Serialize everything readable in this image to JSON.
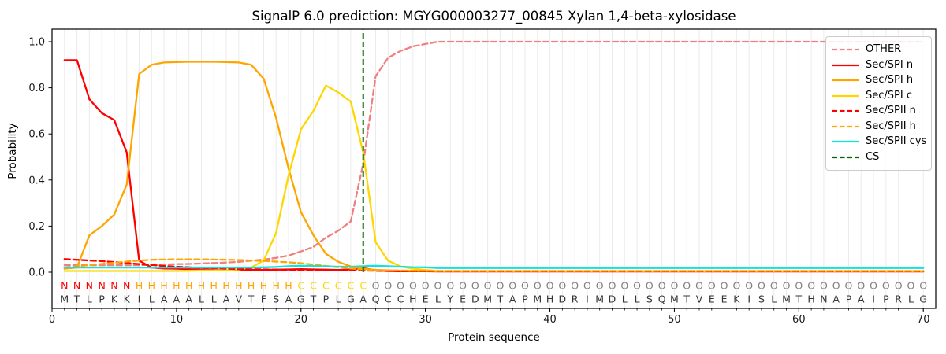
{
  "chart_data": {
    "type": "line",
    "title": "SignalP 6.0 prediction: MGYG000003277_00845 Xylan 1,4-beta-xylosidase",
    "xlabel": "Protein sequence",
    "ylabel": "Probability",
    "xlim": [
      0,
      71
    ],
    "ylim": [
      -0.157,
      1.0546
    ],
    "x_ticks": [
      0,
      10,
      20,
      30,
      40,
      50,
      60,
      70
    ],
    "y_ticks": [
      0.0,
      0.2,
      0.4,
      0.6,
      0.8,
      1.0
    ],
    "grid": "vertical-per-residue",
    "legend_position": "upper-right",
    "legend": [
      "OTHER",
      "Sec/SPI n",
      "Sec/SPI h",
      "Sec/SPI c",
      "Sec/SPII n",
      "Sec/SPII h",
      "Sec/SPII cys",
      "CS"
    ],
    "x": [
      1,
      2,
      3,
      4,
      5,
      6,
      7,
      8,
      9,
      10,
      11,
      12,
      13,
      14,
      15,
      16,
      17,
      18,
      19,
      20,
      21,
      22,
      23,
      24,
      25,
      26,
      27,
      28,
      29,
      30,
      31,
      32,
      33,
      34,
      35,
      36,
      37,
      38,
      39,
      40,
      41,
      42,
      43,
      44,
      45,
      46,
      47,
      48,
      49,
      50,
      51,
      52,
      53,
      54,
      55,
      56,
      57,
      58,
      59,
      60,
      61,
      62,
      63,
      64,
      65,
      66,
      67,
      68,
      69,
      70
    ],
    "series": [
      {
        "name": "OTHER",
        "color": "#f08080",
        "dash": "dashed",
        "values": [
          0.03,
          0.03,
          0.03,
          0.03,
          0.03,
          0.03,
          0.03,
          0.032,
          0.033,
          0.035,
          0.036,
          0.038,
          0.04,
          0.042,
          0.045,
          0.05,
          0.055,
          0.062,
          0.072,
          0.09,
          0.11,
          0.15,
          0.18,
          0.22,
          0.47,
          0.85,
          0.93,
          0.96,
          0.98,
          0.99,
          1.0,
          1.0,
          1.0,
          1.0,
          1.0,
          1.0,
          1.0,
          1.0,
          1.0,
          1.0,
          1.0,
          1.0,
          1.0,
          1.0,
          1.0,
          1.0,
          1.0,
          1.0,
          1.0,
          1.0,
          1.0,
          1.0,
          1.0,
          1.0,
          1.0,
          1.0,
          1.0,
          1.0,
          1.0,
          1.0,
          1.0,
          1.0,
          1.0,
          1.0,
          1.0,
          1.0,
          1.0,
          1.0,
          1.0,
          1.0
        ]
      },
      {
        "name": "Sec/SPI n",
        "color": "#ff0000",
        "dash": "solid",
        "values": [
          0.92,
          0.92,
          0.75,
          0.69,
          0.66,
          0.52,
          0.05,
          0.02,
          0.016,
          0.015,
          0.013,
          0.012,
          0.011,
          0.01,
          0.01,
          0.01,
          0.01,
          0.011,
          0.012,
          0.013,
          0.012,
          0.011,
          0.01,
          0.012,
          0.018,
          0.008,
          0.005,
          0.004,
          0.004,
          0.004,
          0.003,
          0.003,
          0.003,
          0.003,
          0.003,
          0.003,
          0.003,
          0.003,
          0.003,
          0.003,
          0.003,
          0.003,
          0.003,
          0.003,
          0.003,
          0.003,
          0.003,
          0.003,
          0.003,
          0.003,
          0.003,
          0.003,
          0.003,
          0.003,
          0.003,
          0.003,
          0.003,
          0.003,
          0.003,
          0.003,
          0.003,
          0.003,
          0.003,
          0.003,
          0.003,
          0.003,
          0.003,
          0.003,
          0.003,
          0.003
        ]
      },
      {
        "name": "Sec/SPI h",
        "color": "#ffa500",
        "dash": "solid",
        "values": [
          0.015,
          0.02,
          0.16,
          0.2,
          0.25,
          0.38,
          0.86,
          0.9,
          0.91,
          0.912,
          0.913,
          0.913,
          0.913,
          0.912,
          0.91,
          0.9,
          0.84,
          0.67,
          0.45,
          0.26,
          0.16,
          0.08,
          0.045,
          0.025,
          0.015,
          0.01,
          0.008,
          0.006,
          0.005,
          0.005,
          0.004,
          0.004,
          0.004,
          0.004,
          0.004,
          0.004,
          0.004,
          0.004,
          0.004,
          0.004,
          0.004,
          0.004,
          0.004,
          0.004,
          0.004,
          0.004,
          0.004,
          0.004,
          0.004,
          0.004,
          0.004,
          0.004,
          0.004,
          0.004,
          0.004,
          0.004,
          0.004,
          0.004,
          0.004,
          0.004,
          0.004,
          0.004,
          0.004,
          0.004,
          0.004,
          0.004,
          0.004,
          0.004,
          0.004,
          0.004
        ]
      },
      {
        "name": "Sec/SPI c",
        "color": "#ffd700",
        "dash": "solid",
        "values": [
          0.005,
          0.005,
          0.005,
          0.005,
          0.005,
          0.005,
          0.005,
          0.005,
          0.005,
          0.005,
          0.006,
          0.007,
          0.008,
          0.01,
          0.012,
          0.02,
          0.05,
          0.17,
          0.42,
          0.62,
          0.7,
          0.81,
          0.78,
          0.74,
          0.52,
          0.13,
          0.05,
          0.025,
          0.015,
          0.01,
          0.005,
          0.005,
          0.005,
          0.005,
          0.005,
          0.005,
          0.005,
          0.005,
          0.005,
          0.005,
          0.005,
          0.005,
          0.005,
          0.005,
          0.005,
          0.005,
          0.005,
          0.005,
          0.005,
          0.005,
          0.005,
          0.005,
          0.005,
          0.005,
          0.005,
          0.005,
          0.005,
          0.005,
          0.005,
          0.005,
          0.005,
          0.005,
          0.005,
          0.005,
          0.005,
          0.005,
          0.005,
          0.005,
          0.005,
          0.005
        ]
      },
      {
        "name": "Sec/SPII n",
        "color": "#ff0000",
        "dash": "dashed",
        "values": [
          0.057,
          0.054,
          0.051,
          0.048,
          0.044,
          0.04,
          0.035,
          0.031,
          0.027,
          0.024,
          0.021,
          0.019,
          0.017,
          0.015,
          0.014,
          0.013,
          0.012,
          0.011,
          0.01,
          0.01,
          0.009,
          0.008,
          0.008,
          0.007,
          0.007,
          0.006,
          0.005,
          0.005,
          0.004,
          0.004,
          0.004,
          0.004,
          0.004,
          0.004,
          0.004,
          0.004,
          0.004,
          0.004,
          0.004,
          0.004,
          0.004,
          0.004,
          0.004,
          0.004,
          0.004,
          0.004,
          0.004,
          0.004,
          0.004,
          0.004,
          0.004,
          0.004,
          0.004,
          0.004,
          0.004,
          0.004,
          0.004,
          0.004,
          0.004,
          0.004,
          0.004,
          0.004,
          0.004,
          0.004,
          0.004,
          0.004,
          0.004,
          0.004,
          0.004,
          0.004
        ]
      },
      {
        "name": "Sec/SPII h",
        "color": "#ffa500",
        "dash": "dashed",
        "values": [
          0.02,
          0.025,
          0.031,
          0.036,
          0.041,
          0.046,
          0.051,
          0.054,
          0.055,
          0.056,
          0.056,
          0.056,
          0.055,
          0.054,
          0.053,
          0.051,
          0.049,
          0.046,
          0.043,
          0.039,
          0.033,
          0.027,
          0.022,
          0.016,
          0.012,
          0.01,
          0.008,
          0.007,
          0.006,
          0.006,
          0.005,
          0.005,
          0.005,
          0.005,
          0.005,
          0.005,
          0.005,
          0.005,
          0.005,
          0.005,
          0.005,
          0.005,
          0.005,
          0.005,
          0.005,
          0.005,
          0.005,
          0.005,
          0.005,
          0.005,
          0.005,
          0.005,
          0.005,
          0.005,
          0.005,
          0.005,
          0.005,
          0.005,
          0.005,
          0.005,
          0.005,
          0.005,
          0.005,
          0.005,
          0.005,
          0.005,
          0.005,
          0.005,
          0.005,
          0.005
        ]
      },
      {
        "name": "Sec/SPII cys",
        "color": "#0ce4dc",
        "dash": "solid",
        "values": [
          0.02,
          0.02,
          0.02,
          0.02,
          0.02,
          0.02,
          0.02,
          0.02,
          0.02,
          0.02,
          0.02,
          0.02,
          0.02,
          0.02,
          0.02,
          0.02,
          0.021,
          0.023,
          0.026,
          0.028,
          0.027,
          0.025,
          0.024,
          0.024,
          0.026,
          0.028,
          0.026,
          0.024,
          0.022,
          0.021,
          0.018,
          0.018,
          0.018,
          0.018,
          0.018,
          0.018,
          0.018,
          0.018,
          0.018,
          0.018,
          0.018,
          0.018,
          0.018,
          0.018,
          0.018,
          0.018,
          0.018,
          0.018,
          0.018,
          0.018,
          0.018,
          0.018,
          0.018,
          0.018,
          0.018,
          0.018,
          0.018,
          0.018,
          0.018,
          0.018,
          0.018,
          0.018,
          0.018,
          0.018,
          0.018,
          0.018,
          0.018,
          0.018,
          0.018,
          0.018
        ]
      }
    ],
    "cs": {
      "name": "CS",
      "position": 25,
      "color": "#006400",
      "dash": "dashed"
    },
    "sequence": "MTLPKKILAAALLAVTFSAGTPLGAQCCHELYEDMTAPMHDRIMDLLSQMTVEEKISLMTHNAPAIPRLG",
    "regions": "NNNNNNHHHHHHHHHHHHHCCCCCCOOOOOOOOOOOOOOOOOOOOOOOOOOOOOOOOOOOOOOOOOOOOO",
    "region_colors": {
      "N": "#ff0000",
      "H": "#ffa500",
      "C": "#ffd700",
      "O": "#7f7f7f"
    },
    "colors": {
      "sequence_text": "#333333",
      "grid": "#ebebeb",
      "frame": "#000000",
      "tick_text": "#1a1a1a"
    }
  }
}
